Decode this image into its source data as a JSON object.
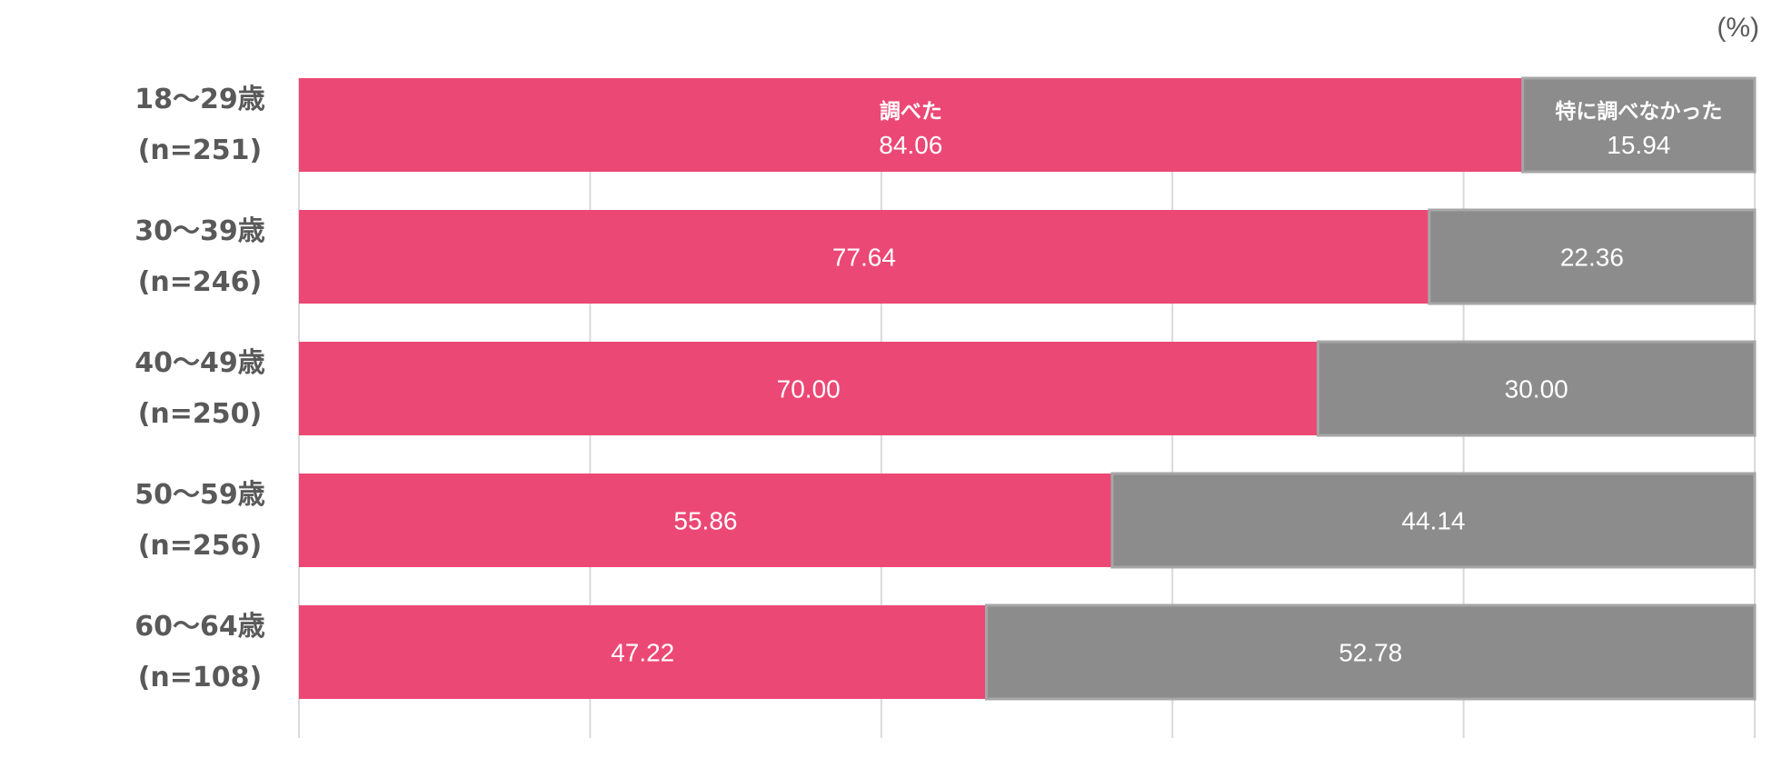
{
  "unit_label": "(%)",
  "colors": {
    "researched": "#ec4875",
    "not_researched": "#8c8c8c",
    "grid": "#d9d9d9",
    "axis_text": "#595959",
    "bar_text": "#ffffff"
  },
  "chart_data": {
    "type": "bar",
    "orientation": "horizontal",
    "stacked": true,
    "xlim": [
      0,
      100
    ],
    "gridlines": [
      0,
      20,
      40,
      60,
      80,
      100
    ],
    "grid": true,
    "categories": [
      {
        "age": "18～29歳",
        "n": "(n=251)"
      },
      {
        "age": "30～39歳",
        "n": "(n=246)"
      },
      {
        "age": "40～49歳",
        "n": "(n=250)"
      },
      {
        "age": "50～59歳",
        "n": "(n=256)"
      },
      {
        "age": "60～64歳",
        "n": "(n=108)"
      }
    ],
    "series": [
      {
        "name": "調べた",
        "color_key": "researched",
        "values": [
          84.06,
          77.64,
          70.0,
          55.86,
          47.22
        ],
        "labels": [
          "84.06",
          "77.64",
          "70.00",
          "55.86",
          "47.22"
        ]
      },
      {
        "name": "特に調べなかった",
        "color_key": "not_researched",
        "values": [
          15.94,
          22.36,
          30.0,
          44.14,
          52.78
        ],
        "labels": [
          "15.94",
          "22.36",
          "30.00",
          "44.14",
          "52.78"
        ]
      }
    ],
    "legend": "inline-first-bar"
  }
}
